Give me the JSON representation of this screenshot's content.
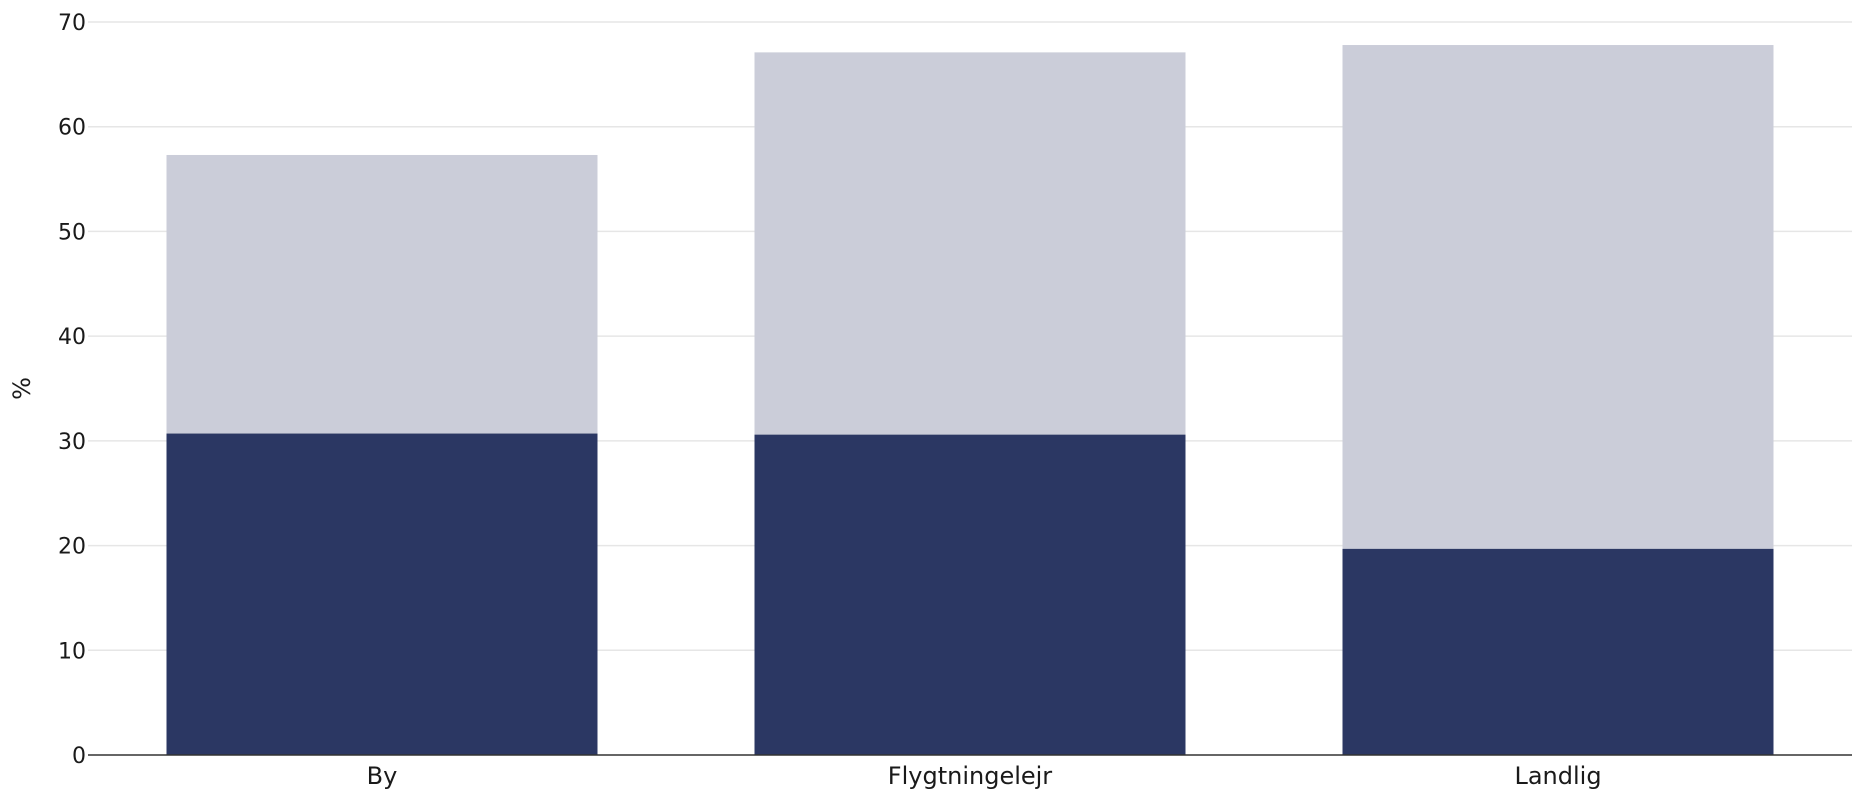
{
  "chart_data": {
    "type": "bar",
    "stacked": true,
    "categories": [
      "By",
      "Flygtningelejr",
      "Landlig"
    ],
    "series": [
      {
        "color": "#2b3763",
        "values": [
          30.7,
          30.6,
          19.7
        ]
      },
      {
        "color": "#cbcdd9",
        "values": [
          26.6,
          36.5,
          48.1
        ]
      }
    ],
    "title": "",
    "xlabel": "",
    "ylabel": "%",
    "ylim": [
      0,
      70
    ],
    "yticks": [
      0,
      10,
      20,
      30,
      40,
      50,
      60,
      70
    ],
    "grid": true
  }
}
